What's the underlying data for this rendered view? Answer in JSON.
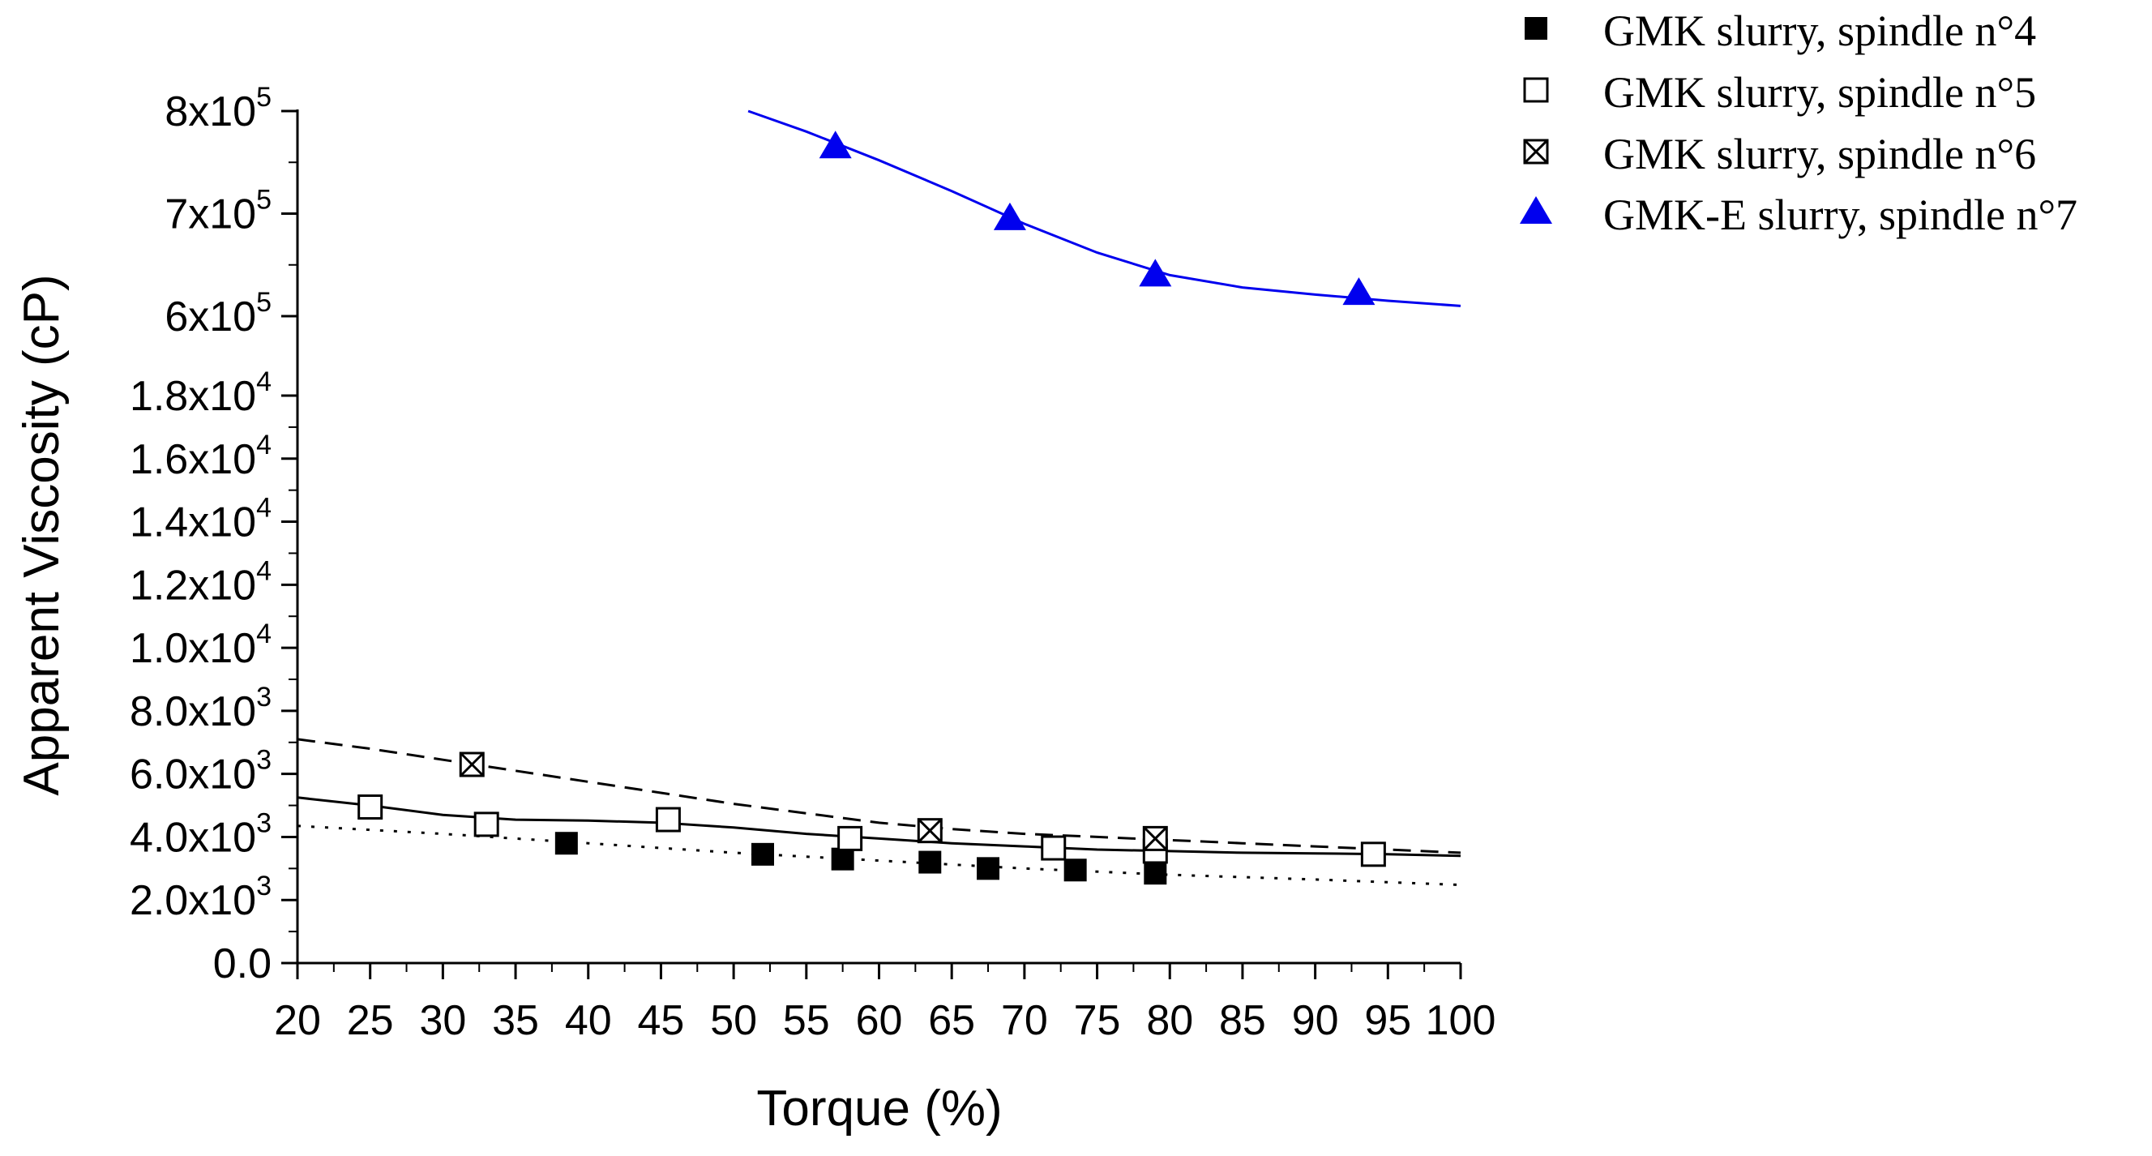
{
  "chart_data": {
    "type": "line",
    "title": "",
    "xlabel": "Torque (%)",
    "ylabel": "Apparent Viscosity (cP)",
    "xlim": [
      20,
      100
    ],
    "x_ticks": [
      20,
      25,
      30,
      35,
      40,
      45,
      50,
      55,
      60,
      65,
      70,
      75,
      80,
      85,
      90,
      95,
      100
    ],
    "y_axis_note": "broken axis: linear 0 to 1.8x10^4 on lower section, 6x10^5 to 8x10^5 on upper section",
    "y_ticks": [
      {
        "value": 0,
        "base": "0.0",
        "exp": ""
      },
      {
        "value": 2000,
        "base": "2.0x10",
        "exp": "3"
      },
      {
        "value": 4000,
        "base": "4.0x10",
        "exp": "3"
      },
      {
        "value": 6000,
        "base": "6.0x10",
        "exp": "3"
      },
      {
        "value": 8000,
        "base": "8.0x10",
        "exp": "3"
      },
      {
        "value": 10000,
        "base": "1.0x10",
        "exp": "4"
      },
      {
        "value": 12000,
        "base": "1.2x10",
        "exp": "4"
      },
      {
        "value": 14000,
        "base": "1.4x10",
        "exp": "4"
      },
      {
        "value": 16000,
        "base": "1.6x10",
        "exp": "4"
      },
      {
        "value": 18000,
        "base": "1.8x10",
        "exp": "4"
      },
      {
        "value": 600000,
        "base": "6x10",
        "exp": "5"
      },
      {
        "value": 700000,
        "base": "7x10",
        "exp": "5"
      },
      {
        "value": 800000,
        "base": "8x10",
        "exp": "5"
      }
    ],
    "series": [
      {
        "name": "GMK slurry, spindle n°4",
        "marker": "filled-square",
        "color": "#000000",
        "points": [
          [
            38.5,
            3800
          ],
          [
            52,
            3450
          ],
          [
            57.5,
            3300
          ],
          [
            63.5,
            3200
          ],
          [
            67.5,
            3000
          ],
          [
            73.5,
            2950
          ],
          [
            79,
            2850
          ]
        ],
        "fit": {
          "style": "dotted",
          "points": [
            [
              20,
              4350
            ],
            [
              30,
              4100
            ],
            [
              40,
              3800
            ],
            [
              50,
              3500
            ],
            [
              60,
              3250
            ],
            [
              70,
              3000
            ],
            [
              80,
              2800
            ],
            [
              90,
              2650
            ],
            [
              100,
              2480
            ]
          ]
        }
      },
      {
        "name": "GMK slurry, spindle n°5",
        "marker": "open-square",
        "color": "#000000",
        "points": [
          [
            25,
            4950
          ],
          [
            33,
            4400
          ],
          [
            45.5,
            4550
          ],
          [
            58,
            3950
          ],
          [
            72,
            3650
          ],
          [
            79,
            3550
          ],
          [
            94,
            3450
          ]
        ],
        "fit": {
          "style": "solid",
          "points": [
            [
              20,
              5250
            ],
            [
              25,
              5000
            ],
            [
              30,
              4700
            ],
            [
              35,
              4550
            ],
            [
              40,
              4520
            ],
            [
              45,
              4450
            ],
            [
              50,
              4300
            ],
            [
              55,
              4100
            ],
            [
              60,
              3950
            ],
            [
              65,
              3800
            ],
            [
              70,
              3700
            ],
            [
              75,
              3600
            ],
            [
              80,
              3550
            ],
            [
              85,
              3500
            ],
            [
              90,
              3480
            ],
            [
              95,
              3450
            ],
            [
              100,
              3400
            ]
          ]
        }
      },
      {
        "name": "GMK slurry, spindle n°6",
        "marker": "crossed-square",
        "color": "#000000",
        "points": [
          [
            32,
            6300
          ],
          [
            63.5,
            4200
          ],
          [
            79,
            3950
          ]
        ],
        "fit": {
          "style": "dashed",
          "points": [
            [
              20,
              7100
            ],
            [
              25,
              6800
            ],
            [
              30,
              6450
            ],
            [
              35,
              6100
            ],
            [
              40,
              5750
            ],
            [
              45,
              5400
            ],
            [
              50,
              5050
            ],
            [
              55,
              4750
            ],
            [
              60,
              4450
            ],
            [
              65,
              4250
            ],
            [
              70,
              4100
            ],
            [
              75,
              4000
            ],
            [
              80,
              3900
            ],
            [
              85,
              3800
            ],
            [
              90,
              3700
            ],
            [
              95,
              3600
            ],
            [
              100,
              3500
            ]
          ]
        }
      },
      {
        "name": "GMK-E slurry, spindle n°7",
        "marker": "filled-triangle",
        "color": "#0000ee",
        "points": [
          [
            57,
            765000
          ],
          [
            69,
            695000
          ],
          [
            79,
            640000
          ],
          [
            93,
            622000
          ]
        ],
        "fit": {
          "style": "solid",
          "points": [
            [
              51,
              800000
            ],
            [
              55,
              780000
            ],
            [
              60,
              752000
            ],
            [
              65,
              722000
            ],
            [
              70,
              690000
            ],
            [
              75,
              662000
            ],
            [
              80,
              640000
            ],
            [
              85,
              628000
            ],
            [
              90,
              621000
            ],
            [
              95,
              615000
            ],
            [
              100,
              610000
            ]
          ]
        }
      }
    ]
  }
}
